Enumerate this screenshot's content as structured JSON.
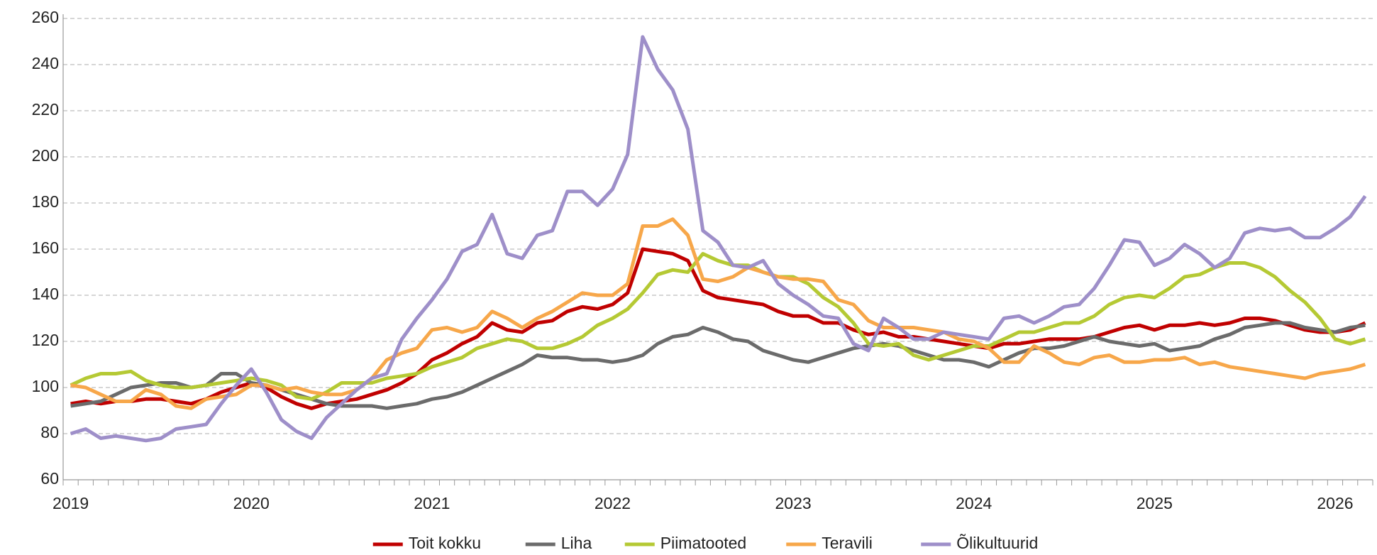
{
  "chart_data": {
    "type": "line",
    "categories": [
      "2019",
      null,
      null,
      null,
      null,
      null,
      null,
      null,
      null,
      null,
      null,
      null,
      "2020",
      null,
      null,
      null,
      null,
      null,
      null,
      null,
      null,
      null,
      null,
      null,
      "2021",
      null,
      null,
      null,
      null,
      null,
      null,
      null,
      null,
      null,
      null,
      null,
      "2022",
      null,
      null,
      null,
      null,
      null,
      null,
      null,
      null,
      null,
      null,
      null,
      "2023",
      null,
      null,
      null,
      null,
      null,
      null,
      null,
      null,
      null,
      null,
      null,
      "2024",
      null,
      null,
      null,
      null,
      null,
      null,
      null,
      null,
      null,
      null,
      null,
      "2025",
      null,
      null,
      null,
      null,
      null,
      null,
      null,
      null,
      null,
      null,
      null,
      "2026",
      null,
      null
    ],
    "series": [
      {
        "name": "Toit kokku",
        "color": "#c00000",
        "values": [
          93,
          94,
          93,
          94,
          94,
          95,
          95,
          94,
          93,
          95,
          98,
          100,
          102,
          100,
          96,
          93,
          91,
          93,
          94,
          95,
          97,
          99,
          102,
          106,
          112,
          115,
          119,
          122,
          128,
          125,
          124,
          128,
          129,
          133,
          135,
          134,
          136,
          141,
          160,
          159,
          158,
          155,
          142,
          139,
          138,
          137,
          136,
          133,
          131,
          131,
          128,
          128,
          125,
          123,
          124,
          122,
          122,
          121,
          120,
          119,
          118,
          117,
          119,
          119,
          120,
          121,
          121,
          121,
          122,
          124,
          126,
          127,
          125,
          127,
          127,
          128,
          127,
          128,
          130,
          130,
          129,
          127,
          125,
          124,
          124,
          125,
          128
        ]
      },
      {
        "name": "Liha",
        "color": "#6b6b6b",
        "values": [
          92,
          93,
          94,
          97,
          100,
          101,
          102,
          102,
          100,
          101,
          106,
          106,
          102,
          101,
          99,
          97,
          95,
          93,
          92,
          92,
          92,
          91,
          92,
          93,
          95,
          96,
          98,
          101,
          104,
          107,
          110,
          114,
          113,
          113,
          112,
          112,
          111,
          112,
          114,
          119,
          122,
          123,
          126,
          124,
          121,
          120,
          116,
          114,
          112,
          111,
          113,
          115,
          117,
          118,
          119,
          118,
          116,
          114,
          112,
          112,
          111,
          109,
          112,
          115,
          117,
          117,
          118,
          120,
          122,
          120,
          119,
          118,
          119,
          116,
          117,
          118,
          121,
          123,
          126,
          127,
          128,
          128,
          126,
          125,
          124,
          126,
          127
        ]
      },
      {
        "name": "Piimatooted",
        "color": "#b5c934",
        "values": [
          101,
          104,
          106,
          106,
          107,
          103,
          101,
          100,
          100,
          101,
          102,
          103,
          104,
          103,
          101,
          96,
          95,
          98,
          102,
          102,
          102,
          104,
          105,
          106,
          109,
          111,
          113,
          117,
          119,
          121,
          120,
          117,
          117,
          119,
          122,
          127,
          130,
          134,
          141,
          149,
          151,
          150,
          158,
          155,
          153,
          153,
          150,
          148,
          148,
          145,
          139,
          135,
          128,
          119,
          118,
          119,
          114,
          112,
          114,
          116,
          118,
          118,
          121,
          124,
          124,
          126,
          128,
          128,
          131,
          136,
          139,
          140,
          139,
          143,
          148,
          149,
          152,
          154,
          154,
          152,
          148,
          142,
          137,
          130,
          121,
          119,
          121
        ]
      },
      {
        "name": "Teravili",
        "color": "#f7a74a",
        "values": [
          101,
          100,
          97,
          94,
          94,
          99,
          97,
          92,
          91,
          95,
          96,
          97,
          101,
          101,
          99,
          100,
          98,
          97,
          97,
          99,
          104,
          112,
          115,
          117,
          125,
          126,
          124,
          126,
          133,
          130,
          126,
          130,
          133,
          137,
          141,
          140,
          140,
          145,
          170,
          170,
          173,
          166,
          147,
          146,
          148,
          152,
          150,
          148,
          147,
          147,
          146,
          138,
          136,
          129,
          126,
          126,
          126,
          125,
          124,
          121,
          120,
          117,
          111,
          111,
          118,
          115,
          111,
          110,
          113,
          114,
          111,
          111,
          112,
          112,
          113,
          110,
          111,
          109,
          108,
          107,
          106,
          105,
          104,
          106,
          107,
          108,
          110
        ]
      },
      {
        "name": "Õlikultuurid",
        "color": "#9e8fc9",
        "values": [
          80,
          82,
          78,
          79,
          78,
          77,
          78,
          82,
          83,
          84,
          93,
          101,
          108,
          98,
          86,
          81,
          78,
          87,
          93,
          99,
          104,
          106,
          121,
          130,
          138,
          147,
          159,
          162,
          175,
          158,
          156,
          166,
          168,
          185,
          185,
          179,
          186,
          201,
          252,
          238,
          229,
          212,
          168,
          163,
          153,
          152,
          155,
          145,
          140,
          136,
          131,
          130,
          119,
          116,
          130,
          126,
          121,
          121,
          124,
          123,
          122,
          121,
          130,
          131,
          128,
          131,
          135,
          136,
          143,
          153,
          164,
          163,
          153,
          156,
          162,
          158,
          152,
          156,
          167,
          169,
          168,
          169,
          165,
          165,
          169,
          174,
          183
        ]
      }
    ],
    "ylim": [
      60,
      260
    ],
    "yticks": [
      60,
      80,
      100,
      120,
      140,
      160,
      180,
      200,
      220,
      240,
      260
    ],
    "grid": true,
    "legend": "bottom"
  }
}
